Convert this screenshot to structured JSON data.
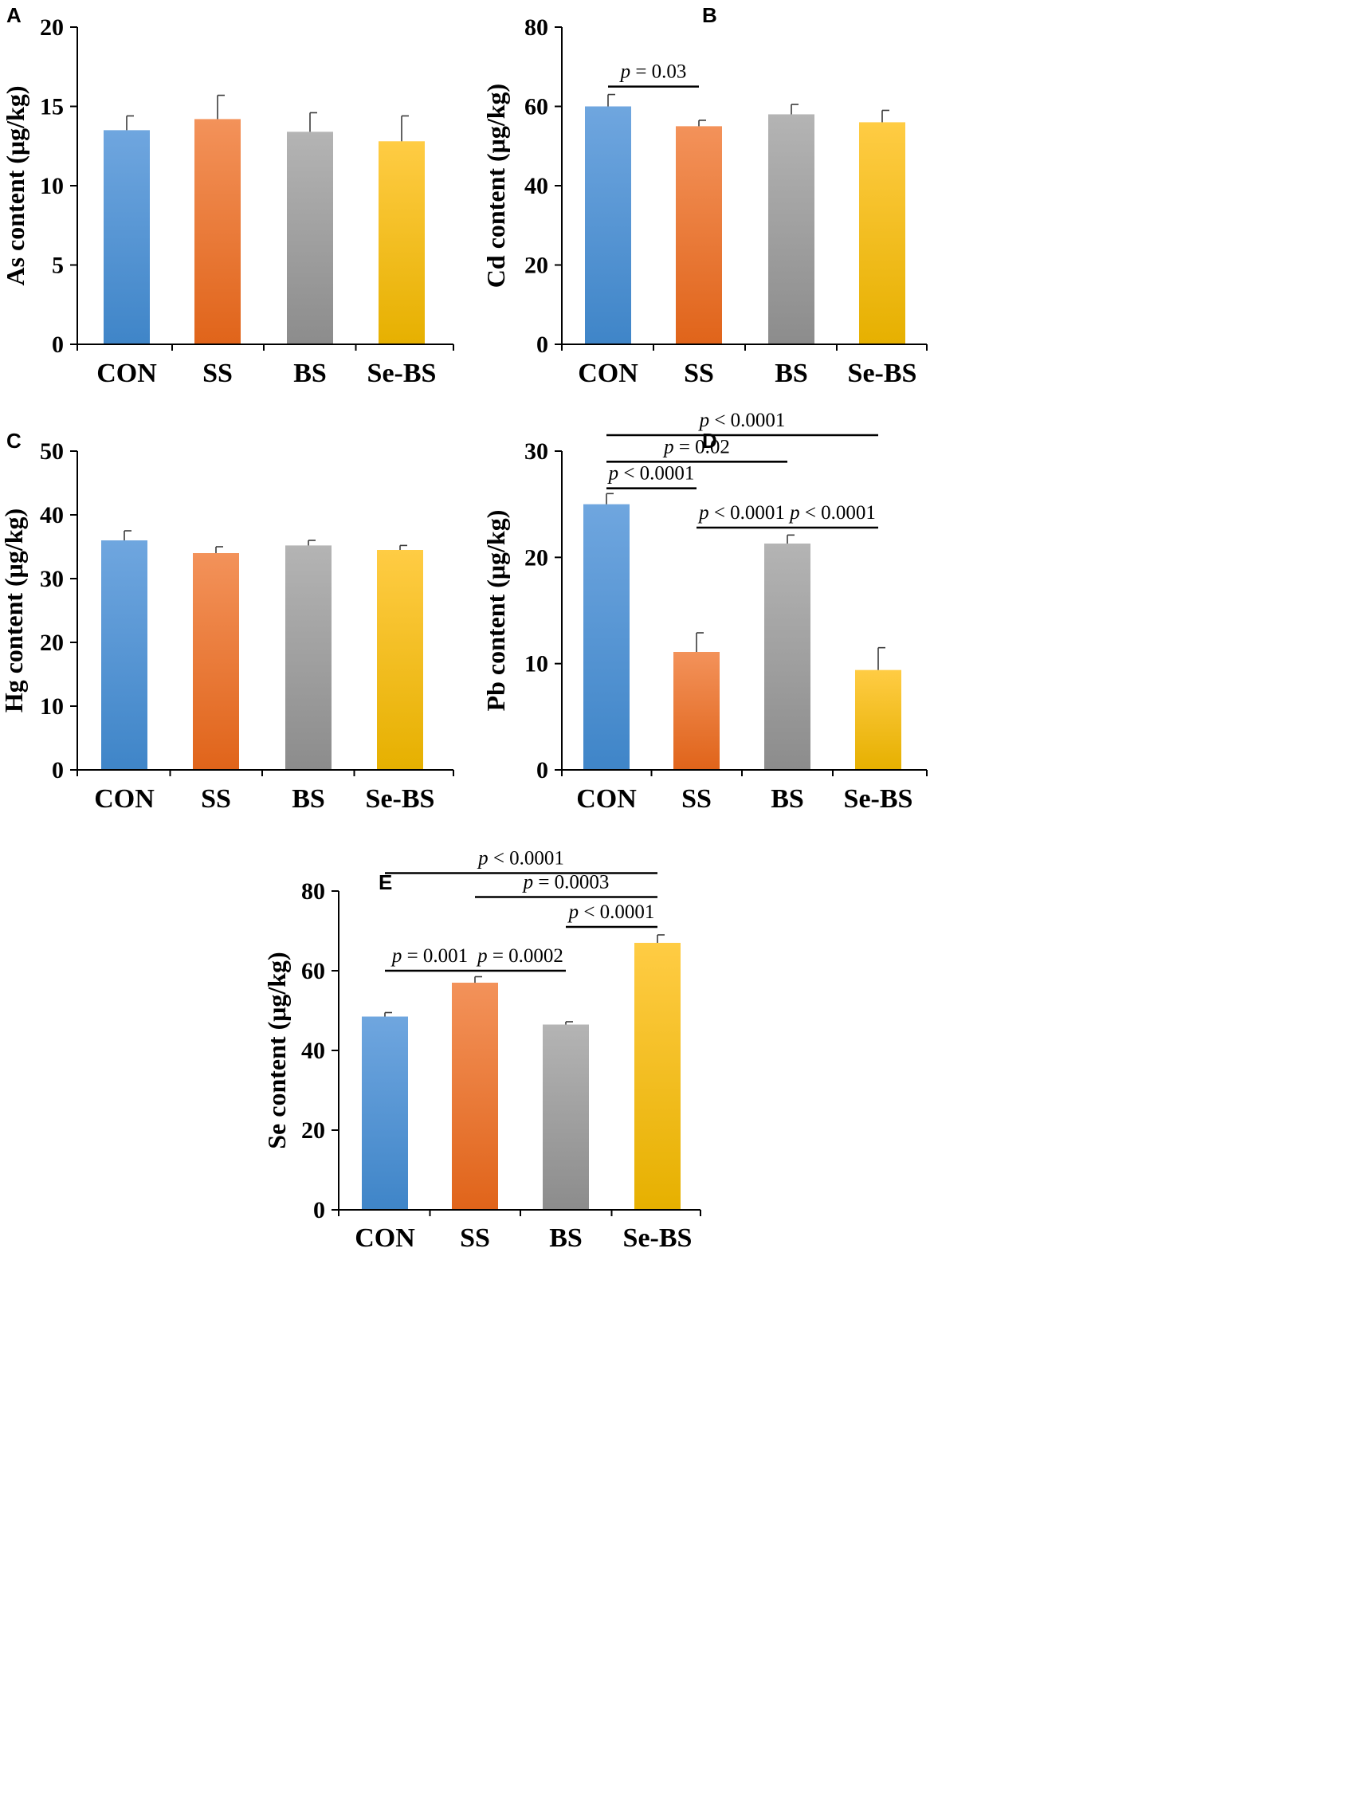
{
  "colors": {
    "CON": [
      "#6fa6df",
      "#3f85c8"
    ],
    "SS": [
      "#f3925a",
      "#e0641a"
    ],
    "BS": [
      "#b4b4b4",
      "#8c8c8c"
    ],
    "Se-BS": [
      "#ffcc44",
      "#e6b000"
    ],
    "axis": "#000000",
    "bracket": "#000000"
  },
  "chart_data": [
    {
      "panel": "A",
      "type": "bar",
      "ylabel": "As content (μg/kg)",
      "ylim": [
        0,
        20
      ],
      "yticks": [
        0,
        5,
        10,
        15,
        20
      ],
      "categories": [
        "CON",
        "SS",
        "BS",
        "Se-BS"
      ],
      "values": [
        13.5,
        14.2,
        13.4,
        12.8
      ],
      "errors": [
        0.9,
        1.5,
        1.2,
        1.6
      ],
      "significance": []
    },
    {
      "panel": "B",
      "type": "bar",
      "ylabel": "Cd content (μg/kg)",
      "ylim": [
        0,
        80
      ],
      "yticks": [
        0,
        20,
        40,
        60,
        80
      ],
      "categories": [
        "CON",
        "SS",
        "BS",
        "Se-BS"
      ],
      "values": [
        60,
        55,
        58,
        56
      ],
      "errors": [
        3,
        1.5,
        2.5,
        3
      ],
      "significance": [
        {
          "from": 0,
          "to": 1,
          "y": 65,
          "p": "p",
          "rel": "=",
          "value": "0.03"
        }
      ]
    },
    {
      "panel": "C",
      "type": "bar",
      "ylabel": "Hg content (μg/kg)",
      "ylim": [
        0,
        50
      ],
      "yticks": [
        0,
        10,
        20,
        30,
        40,
        50
      ],
      "categories": [
        "CON",
        "SS",
        "BS",
        "Se-BS"
      ],
      "values": [
        36,
        34,
        35.2,
        34.5
      ],
      "errors": [
        1.5,
        1,
        0.8,
        0.7
      ],
      "significance": []
    },
    {
      "panel": "D",
      "type": "bar",
      "ylabel": "Pb content (μg/kg)",
      "ylim": [
        0,
        30
      ],
      "yticks": [
        0,
        10,
        20,
        30
      ],
      "categories": [
        "CON",
        "SS",
        "BS",
        "Se-BS"
      ],
      "values": [
        25,
        11.1,
        21.3,
        9.4
      ],
      "errors": [
        1,
        1.8,
        0.8,
        2.1
      ],
      "significance": [
        {
          "from": 0,
          "to": 3,
          "y": 31.5,
          "p": "p",
          "rel": "<",
          "value": "0.0001"
        },
        {
          "from": 0,
          "to": 2,
          "y": 29,
          "p": "p",
          "rel": "=",
          "value": "0.02"
        },
        {
          "from": 0,
          "to": 1,
          "y": 26.5,
          "p": "p",
          "rel": "<",
          "value": "0.0001"
        },
        {
          "from": 1,
          "to": 2,
          "y": 22.8,
          "p": "p",
          "rel": "<",
          "value": "0.0001"
        },
        {
          "from": 2,
          "to": 3,
          "y": 22.8,
          "p": "p",
          "rel": "<",
          "value": "0.0001"
        }
      ]
    },
    {
      "panel": "E",
      "type": "bar",
      "ylabel": "Se content (μg/kg)",
      "ylim": [
        0,
        80
      ],
      "yticks": [
        0,
        20,
        40,
        60,
        80
      ],
      "categories": [
        "CON",
        "SS",
        "BS",
        "Se-BS"
      ],
      "values": [
        48.5,
        57,
        46.5,
        67
      ],
      "errors": [
        1,
        1.5,
        0.7,
        2
      ],
      "significance": [
        {
          "from": 0,
          "to": 3,
          "y": 84.5,
          "p": "p",
          "rel": "<",
          "value": "0.0001"
        },
        {
          "from": 1,
          "to": 3,
          "y": 78.5,
          "p": "p",
          "rel": "=",
          "value": "0.0003"
        },
        {
          "from": 2,
          "to": 3,
          "y": 71,
          "p": "p",
          "rel": "<",
          "value": "0.0001"
        },
        {
          "from": 0,
          "to": 1,
          "y": 60,
          "p": "p",
          "rel": "=",
          "value": "0.001"
        },
        {
          "from": 1,
          "to": 2,
          "y": 60,
          "p": "p",
          "rel": "=",
          "value": "0.0002"
        }
      ]
    }
  ]
}
